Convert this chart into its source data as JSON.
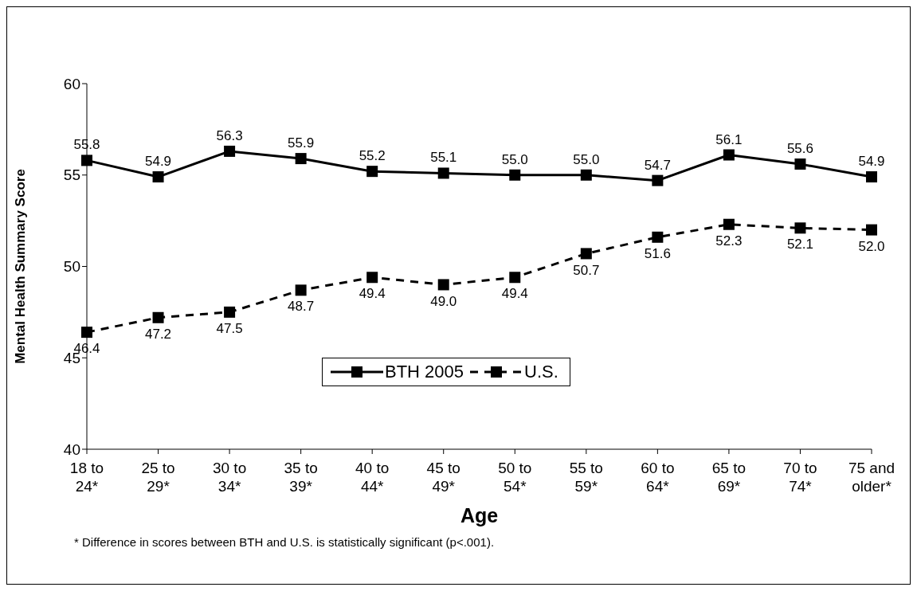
{
  "chart_data": {
    "type": "line",
    "xlabel": "Age",
    "ylabel": "Mental Health Summary Score",
    "categories": [
      "18 to 24*",
      "25 to 29*",
      "30 to 34*",
      "35 to 39*",
      "40 to 44*",
      "45 to 49*",
      "50 to 54*",
      "55 to 59*",
      "60 to 64*",
      "65 to 69*",
      "70 to 74*",
      "75 and older*"
    ],
    "series": [
      {
        "name": "BTH 2005",
        "color": "#000000",
        "line_style": "solid",
        "values": [
          55.8,
          54.9,
          56.3,
          55.9,
          55.2,
          55.1,
          55.0,
          55.0,
          54.7,
          56.1,
          55.6,
          54.9
        ],
        "value_labels": [
          "55.8",
          "54.9",
          "56.3",
          "55.9",
          "55.2",
          "55.1",
          "55.0",
          "55.0",
          "54.7",
          "56.1",
          "55.6",
          "54.9"
        ]
      },
      {
        "name": "U.S.",
        "color": "#000000",
        "line_style": "dashed",
        "values": [
          46.4,
          47.2,
          47.5,
          48.7,
          49.4,
          49.0,
          49.4,
          50.7,
          51.6,
          52.3,
          52.1,
          52.0
        ],
        "value_labels": [
          "46.4",
          "47.2",
          "47.5",
          "48.7",
          "49.4",
          "49.0",
          "49.4",
          "50.7",
          "51.6",
          "52.3",
          "52.1",
          "52.0"
        ]
      }
    ],
    "ylim": [
      40,
      60
    ],
    "yticks": [
      40,
      45,
      50,
      55,
      60
    ],
    "legend": "bottom",
    "marker": "square",
    "annotations": [
      "* Difference in scores between BTH and U.S. is statistically significant (p<.001)."
    ]
  }
}
